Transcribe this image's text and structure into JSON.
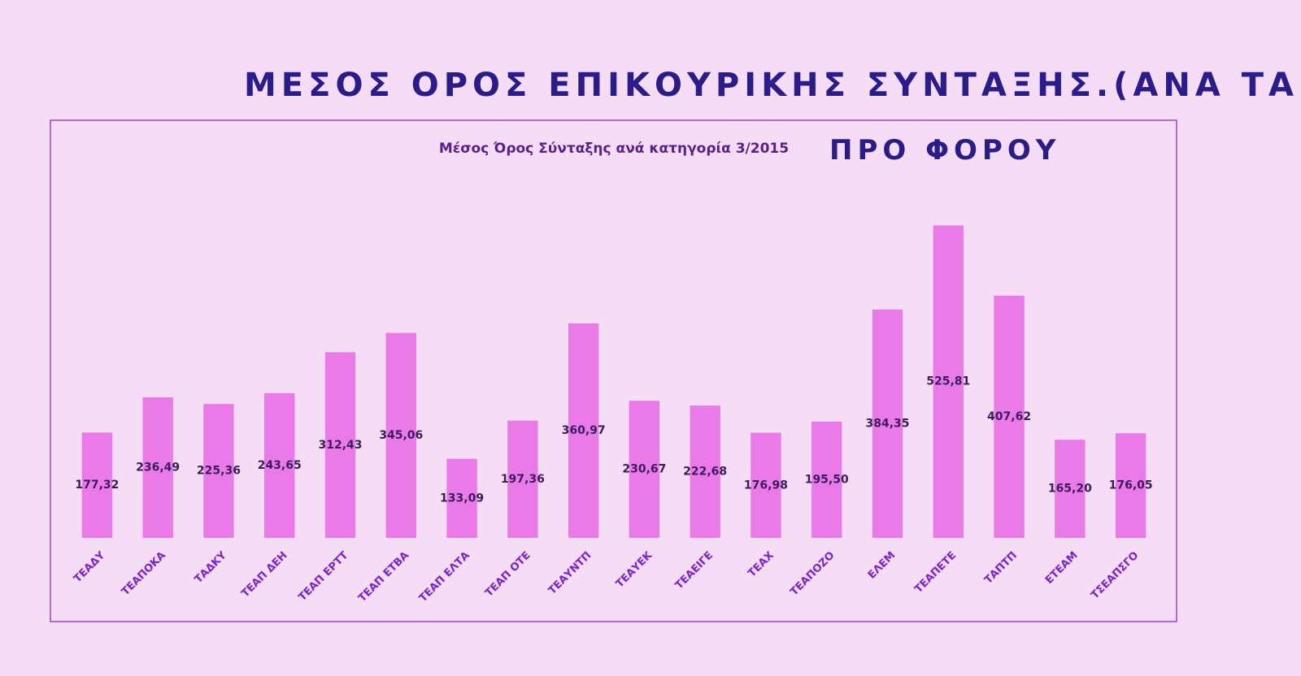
{
  "chart_data": {
    "type": "bar",
    "title": "ΜΕΣΟΣ ΟΡΟΣ ΕΠΙΚΟΥΡΙΚΗΣ ΣΥΝΤΑΞΗΣ.(ΑΝΑ ΤΑΜΗΟ.)",
    "subtitle": "Μέσος Όρος Σύνταξης  ανά κατηγορία 3/2015",
    "annotation": "ΠΡΟ ΦΟΡΟΥ",
    "categories": [
      "ΤΕΑΔΥ",
      "ΤΕΑΠΟΚΑ",
      "ΤΑΔΚΥ",
      "ΤΕΑΠ ΔΕΗ",
      "ΤΕΑΠ ΕΡΤΤ",
      "ΤΕΑΠ ΕΤΒΑ",
      "ΤΕΑΠ ΕΛΤΑ",
      "ΤΕΑΠ ΟΤΕ",
      "ΤΕΑΥΝΤΠ",
      "ΤΕΑΥΕΚ",
      "ΤΕΑΕΙΓΕ",
      "ΤΕΑΧ",
      "ΤΕΑΠΟΖΟ",
      "ΕΛΕΜ",
      "ΤΕΑΠΕΤΕ",
      "ΤΑΠΤΠ",
      "ΕΤΕΑΜ",
      "ΤΣΕΑΠΣΓΟ"
    ],
    "values": [
      177.32,
      236.49,
      225.36,
      243.65,
      312.43,
      345.06,
      133.09,
      197.36,
      360.97,
      230.67,
      222.68,
      176.98,
      195.5,
      384.35,
      525.81,
      407.62,
      165.2,
      176.05
    ],
    "value_labels": [
      "177,32",
      "236,49",
      "225,36",
      "243,65",
      "312,43",
      "345,06",
      "133,09",
      "197,36",
      "360,97",
      "230,67",
      "222,68",
      "176,98",
      "195,50",
      "384,35",
      "525,81",
      "407,62",
      "165,20",
      "176,05"
    ],
    "color": "#ea7ae8",
    "ylim": [
      0,
      670
    ]
  }
}
